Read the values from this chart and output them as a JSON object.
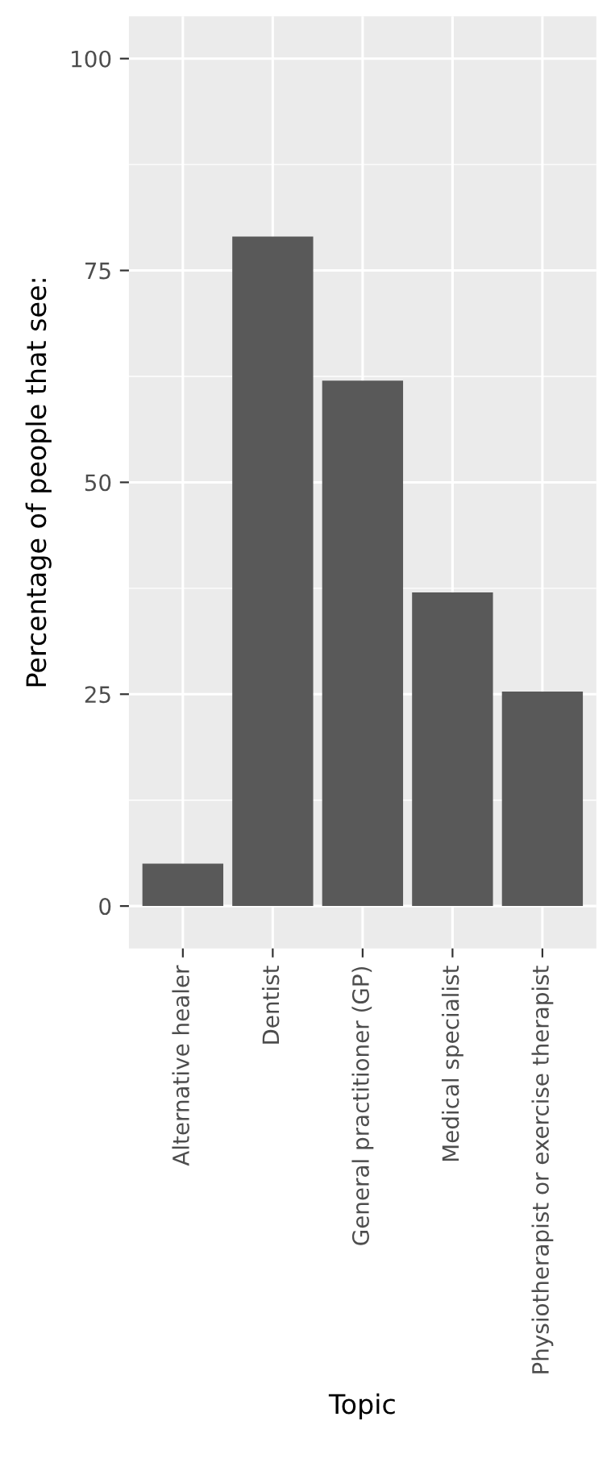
{
  "chart_data": {
    "type": "bar",
    "xlabel": "Topic",
    "ylabel": "Percentage of people that see:",
    "categories": [
      "Alternative healer",
      "Dentist",
      "General practitioner (GP)",
      "Medical specialist",
      "Physiotherapist or exercise therapist"
    ],
    "values": [
      5,
      79,
      62,
      37,
      25.3
    ],
    "color": "#595959",
    "ylim": [
      -5,
      105
    ],
    "yticks": [
      0,
      25,
      50,
      75,
      100
    ],
    "grid": true,
    "legend": false
  }
}
